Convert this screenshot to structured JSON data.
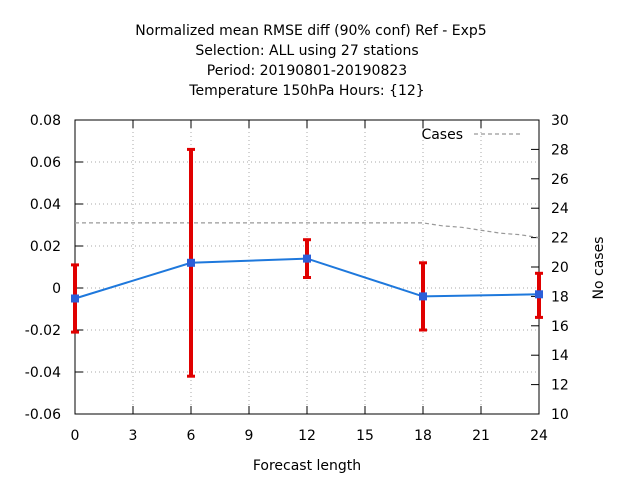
{
  "colors": {
    "main_series": "#1e78dc",
    "marker": "#2c5fd8",
    "error_bars": "#e00000",
    "cases_line": "#999999",
    "grid": "#aaaaaa"
  },
  "chart_data": {
    "type": "line",
    "title_lines": [
      "Normalized mean RMSE diff (90% conf) Ref - Exp5",
      "Selection: ALL using    27 stations",
      "Period: 20190801-20190823",
      "Temperature 150hPa   Hours: {12}"
    ],
    "xlabel": "Forecast length",
    "ylabel": "",
    "y2label": "No cases",
    "xlim": [
      0,
      24
    ],
    "ylim": [
      -0.06,
      0.08
    ],
    "y2lim": [
      10,
      30
    ],
    "x_ticks": [
      "0",
      "3",
      "6",
      "9",
      "12",
      "15",
      "18",
      "21",
      "24"
    ],
    "y_ticks": [
      "-0.06",
      "-0.04",
      "-0.02",
      "0",
      "0.02",
      "0.04",
      "0.06",
      "0.08"
    ],
    "y2_ticks": [
      "10",
      "12",
      "14",
      "16",
      "18",
      "20",
      "22",
      "24",
      "26",
      "28",
      "30"
    ],
    "grid": true,
    "legend": {
      "placement": "top-right",
      "entries": [
        "Cases"
      ]
    },
    "series": [
      {
        "axis": "left",
        "x": [
          0,
          6,
          12,
          18,
          24
        ],
        "values": [
          -0.005,
          0.012,
          0.014,
          -0.004,
          -0.003
        ],
        "error_low": [
          -0.021,
          -0.042,
          0.005,
          -0.02,
          -0.014
        ],
        "error_high": [
          0.011,
          0.066,
          0.023,
          0.012,
          0.007
        ]
      },
      {
        "name": "Cases",
        "axis": "right",
        "style": "dashed",
        "x": [
          0,
          6,
          12,
          18,
          19,
          20,
          21,
          22,
          23,
          24
        ],
        "values": [
          23,
          23,
          23,
          23,
          22.8,
          22.7,
          22.5,
          22.3,
          22.2,
          22
        ]
      }
    ]
  }
}
